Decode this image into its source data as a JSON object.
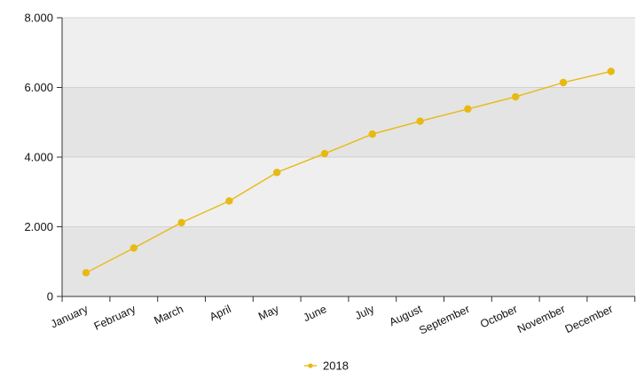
{
  "chart_data": {
    "type": "line",
    "categories": [
      "January",
      "February",
      "March",
      "April",
      "May",
      "June",
      "July",
      "August",
      "September",
      "October",
      "November",
      "December"
    ],
    "series": [
      {
        "name": "2018",
        "values": [
          680,
          1390,
          2120,
          2740,
          3560,
          4100,
          4660,
          5030,
          5380,
          5730,
          6140,
          6460
        ],
        "color": "#E8B912"
      }
    ],
    "y_ticks": [
      "0",
      "2.000",
      "4.000",
      "6.000",
      "8.000"
    ],
    "ylim": [
      0,
      8000
    ],
    "grid": true,
    "band_colors": [
      "#E4E4E4",
      "#EFEFEF"
    ],
    "legend_position": "bottom"
  }
}
